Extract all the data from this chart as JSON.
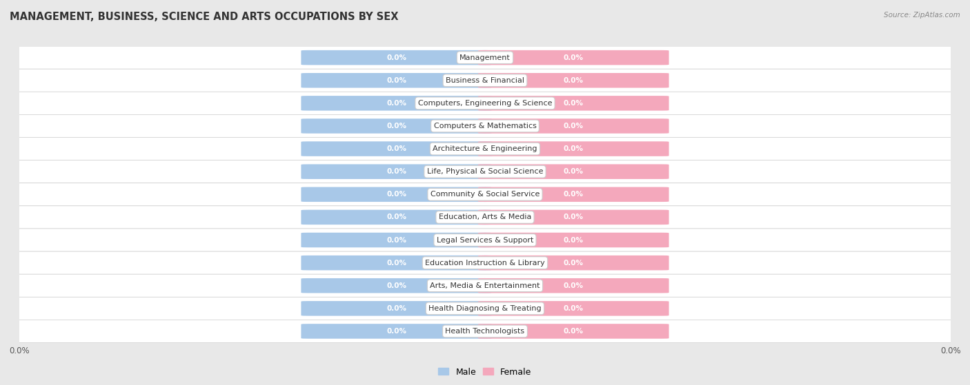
{
  "title": "MANAGEMENT, BUSINESS, SCIENCE AND ARTS OCCUPATIONS BY SEX",
  "source": "Source: ZipAtlas.com",
  "categories": [
    "Management",
    "Business & Financial",
    "Computers, Engineering & Science",
    "Computers & Mathematics",
    "Architecture & Engineering",
    "Life, Physical & Social Science",
    "Community & Social Service",
    "Education, Arts & Media",
    "Legal Services & Support",
    "Education Instruction & Library",
    "Arts, Media & Entertainment",
    "Health Diagnosing & Treating",
    "Health Technologists"
  ],
  "male_values": [
    0.0,
    0.0,
    0.0,
    0.0,
    0.0,
    0.0,
    0.0,
    0.0,
    0.0,
    0.0,
    0.0,
    0.0,
    0.0
  ],
  "female_values": [
    0.0,
    0.0,
    0.0,
    0.0,
    0.0,
    0.0,
    0.0,
    0.0,
    0.0,
    0.0,
    0.0,
    0.0,
    0.0
  ],
  "male_color": "#a8c8e8",
  "female_color": "#f4a8bc",
  "background_color": "#e8e8e8",
  "row_color_even": "#f2f2f2",
  "row_color_odd": "#e8e8e8",
  "bar_stub": 0.38,
  "bar_height": 0.62,
  "xlim_left": -1.0,
  "xlim_right": 1.0,
  "title_fontsize": 10.5,
  "value_fontsize": 7.5,
  "category_fontsize": 8.0,
  "legend_fontsize": 9,
  "axis_label_fontsize": 8.5
}
